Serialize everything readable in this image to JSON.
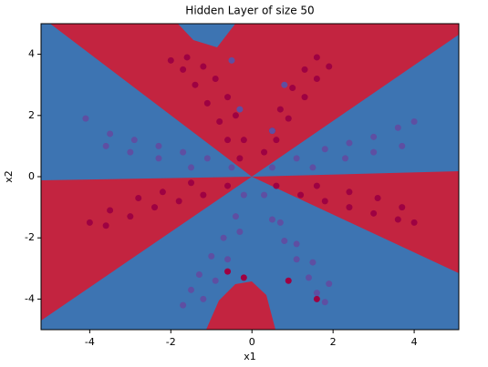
{
  "chart_data": {
    "type": "scatter",
    "title": "Hidden Layer of size 50",
    "x_label": "x1",
    "y_label": "x2",
    "xlim": [
      -5.2,
      5.1
    ],
    "ylim": [
      -5,
      5
    ],
    "xticks": [
      -4,
      -2,
      0,
      2,
      4
    ],
    "yticks": [
      -4,
      -2,
      0,
      2,
      4
    ],
    "series": [
      {
        "color": "#9e0142",
        "x": [
          -0.3,
          -0.6,
          -0.8,
          -1.1,
          -1.4,
          -1.7,
          -2.0,
          -1.6,
          -1.2,
          -0.9,
          -0.6,
          -0.4,
          -0.2,
          0.3,
          0.5,
          0.7,
          1.0,
          1.3,
          1.6,
          1.9,
          1.6,
          1.3,
          0.9,
          0.6,
          -0.6,
          -1.2,
          -1.8,
          -2.4,
          -3.0,
          -3.6,
          -4.0,
          -3.5,
          -2.8,
          -2.2,
          -1.5,
          0.6,
          1.2,
          1.8,
          2.4,
          3.0,
          3.6,
          4.0,
          3.7,
          3.1,
          2.4,
          1.6,
          0.9,
          1.6,
          -0.6,
          -0.2
        ],
        "values": [
          0.6,
          1.2,
          1.8,
          2.4,
          3.0,
          3.5,
          3.8,
          3.9,
          3.6,
          3.2,
          2.6,
          2.0,
          1.2,
          0.8,
          1.5,
          2.2,
          2.9,
          3.5,
          3.9,
          3.6,
          3.2,
          2.6,
          1.9,
          1.2,
          -0.3,
          -0.6,
          -0.8,
          -1.0,
          -1.3,
          -1.6,
          -1.5,
          -1.1,
          -0.7,
          -0.5,
          -0.2,
          -0.3,
          -0.6,
          -0.8,
          -1.0,
          -1.2,
          -1.4,
          -1.5,
          -1.0,
          -0.7,
          -0.5,
          -0.3,
          -3.4,
          -4.0,
          -3.1,
          -3.3
        ]
      },
      {
        "color": "#5e4fa2",
        "x": [
          -0.5,
          -1.1,
          -1.7,
          -2.3,
          -2.9,
          -3.5,
          -4.1,
          -3.6,
          -3.0,
          -2.3,
          -1.5,
          0.5,
          1.1,
          1.8,
          2.4,
          3.0,
          3.6,
          4.0,
          3.7,
          3.0,
          2.3,
          1.5,
          -0.2,
          -0.4,
          -0.7,
          -1.0,
          -1.3,
          -1.5,
          -1.7,
          -1.2,
          -0.9,
          -0.6,
          -0.3,
          0.3,
          0.5,
          0.8,
          1.1,
          1.4,
          1.6,
          1.8,
          1.9,
          1.5,
          1.1,
          0.7,
          -0.5,
          0.8,
          -0.3,
          0.5
        ],
        "values": [
          0.3,
          0.6,
          0.8,
          1.0,
          1.2,
          1.4,
          1.9,
          1.0,
          0.8,
          0.6,
          0.3,
          0.3,
          0.6,
          0.9,
          1.1,
          1.3,
          1.6,
          1.8,
          1.0,
          0.8,
          0.6,
          0.3,
          -0.6,
          -1.3,
          -2.0,
          -2.6,
          -3.2,
          -3.7,
          -4.2,
          -4.0,
          -3.4,
          -2.7,
          -1.8,
          -0.6,
          -1.4,
          -2.1,
          -2.7,
          -3.3,
          -3.8,
          -4.1,
          -3.5,
          -2.8,
          -2.2,
          -1.5,
          3.8,
          3.0,
          2.2,
          1.5
        ]
      }
    ]
  }
}
